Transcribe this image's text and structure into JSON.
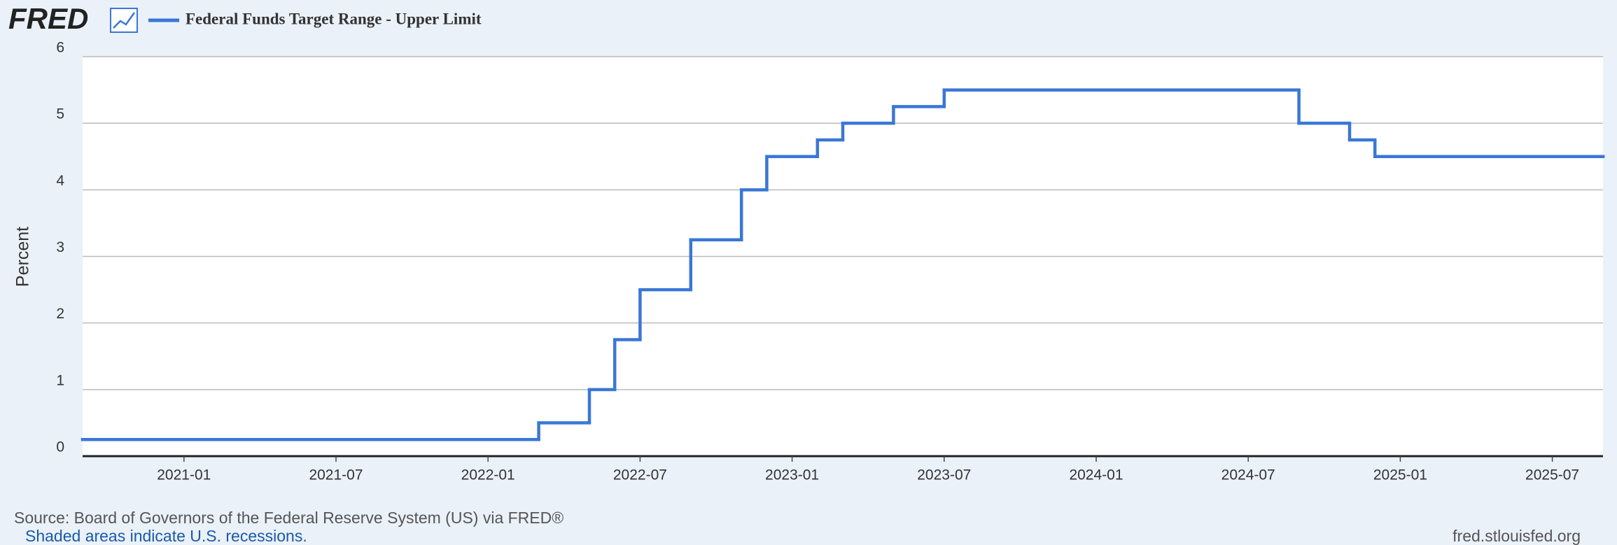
{
  "brand": "FRED",
  "source": "Source: Board of Governors of the Federal Reserve System (US) via FRED®",
  "note": "Shaded areas indicate U.S. recessions.",
  "site": "fred.stlouisfed.org",
  "chart_data": {
    "type": "line",
    "step": true,
    "ylabel": "Percent",
    "x": [
      "2020-09",
      "2022-03",
      "2022-05",
      "2022-06",
      "2022-07",
      "2022-09",
      "2022-11",
      "2022-12",
      "2023-02",
      "2023-03",
      "2023-05",
      "2023-07",
      "2024-09",
      "2024-11",
      "2024-12",
      "2025-09"
    ],
    "series": [
      {
        "name": "Federal Funds Target Range - Upper Limit",
        "color": "#3a77d6",
        "values": [
          0.25,
          0.5,
          1.0,
          1.75,
          2.5,
          3.25,
          4.0,
          4.5,
          4.75,
          5.0,
          5.25,
          5.5,
          5.0,
          4.75,
          4.5,
          4.5
        ]
      }
    ],
    "xlim": [
      "2020-09",
      "2025-09"
    ],
    "xticks": [
      "2021-01",
      "2021-07",
      "2022-01",
      "2022-07",
      "2023-01",
      "2023-07",
      "2024-01",
      "2024-07",
      "2025-01",
      "2025-07"
    ],
    "ylim": [
      0,
      6
    ],
    "yticks": [
      0,
      1,
      2,
      3,
      4,
      5,
      6
    ],
    "grid": true
  }
}
